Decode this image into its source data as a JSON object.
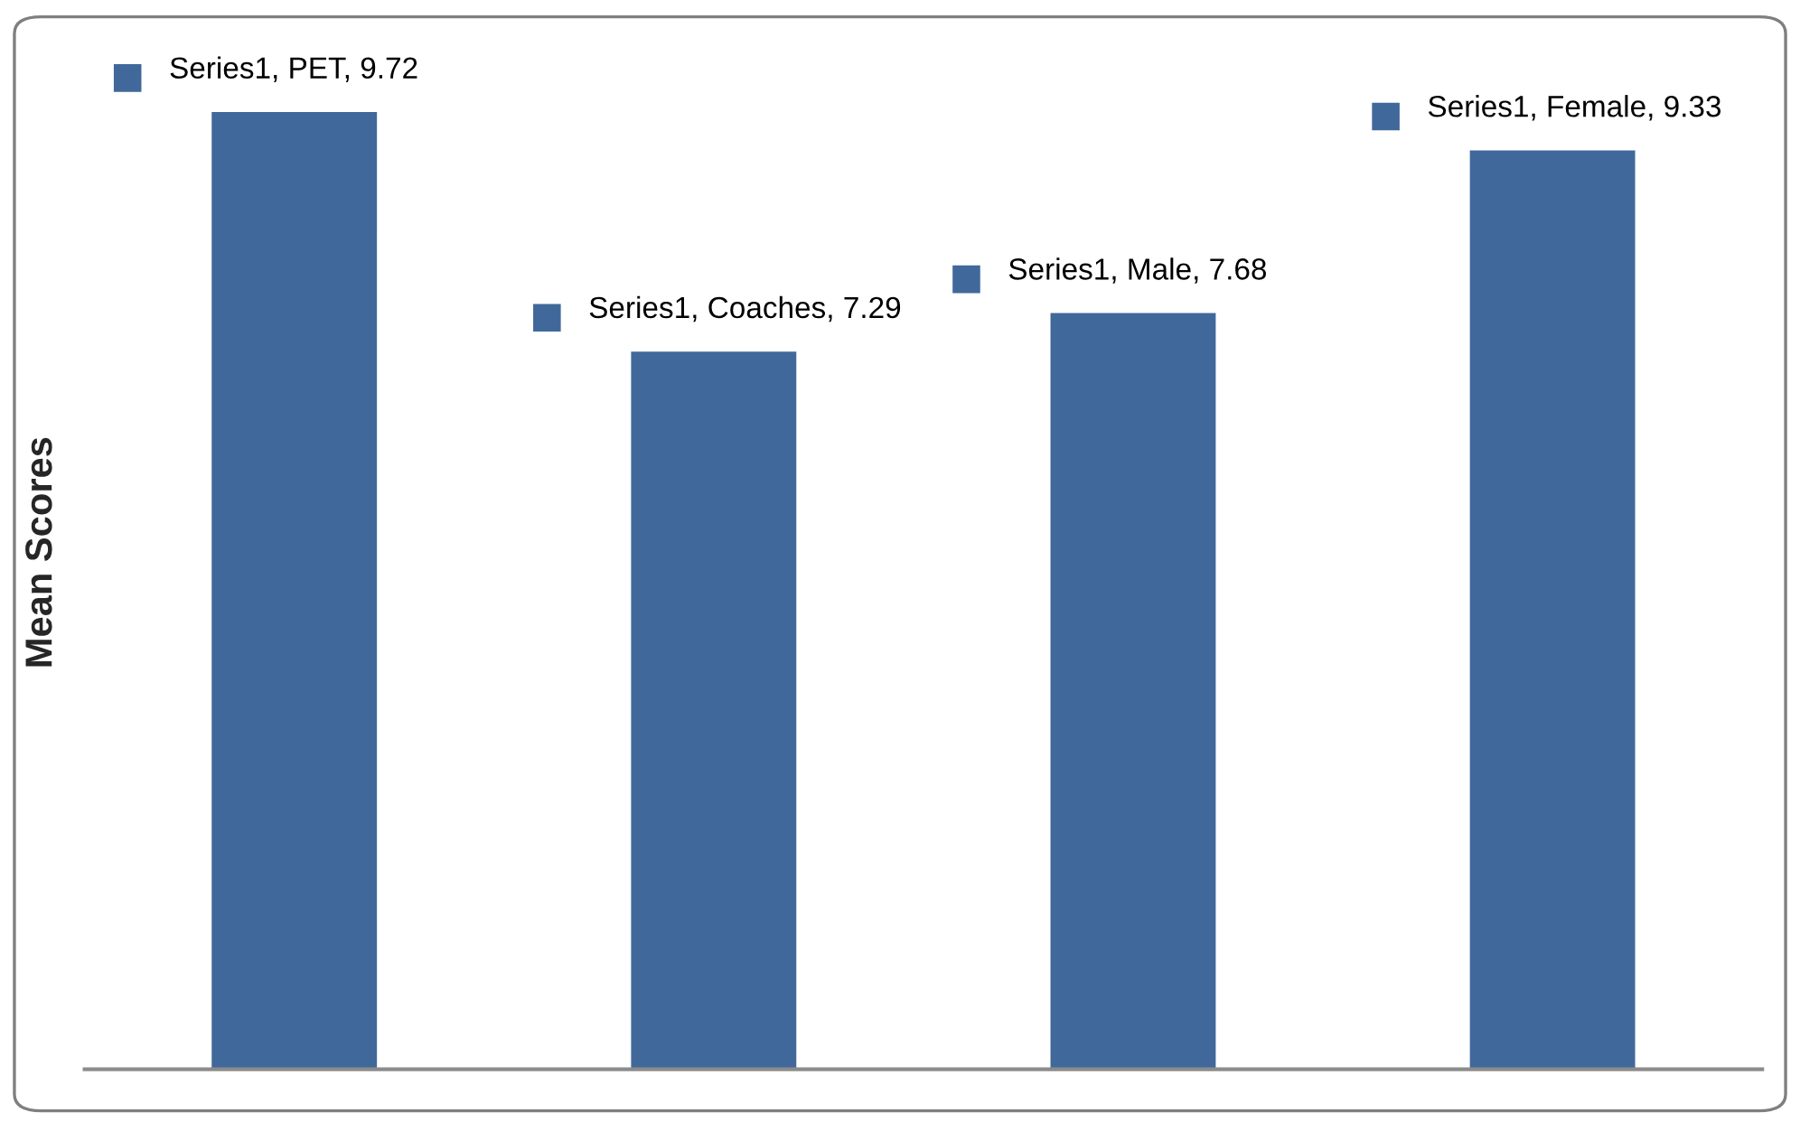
{
  "chart_data": {
    "type": "bar",
    "ylabel": "Mean Scores",
    "categories": [
      null,
      null,
      null,
      null
    ],
    "values": [
      9.72,
      7.29,
      7.68,
      9.33
    ],
    "color": "#41689a",
    "value_labels": [
      "Series1, PET, 9.72",
      "Series1, Coaches, 7.29",
      "Series1, Male, 7.68",
      "Series1, Female, 9.33"
    ],
    "grid": false,
    "legend": false,
    "tick_labels": false
  }
}
